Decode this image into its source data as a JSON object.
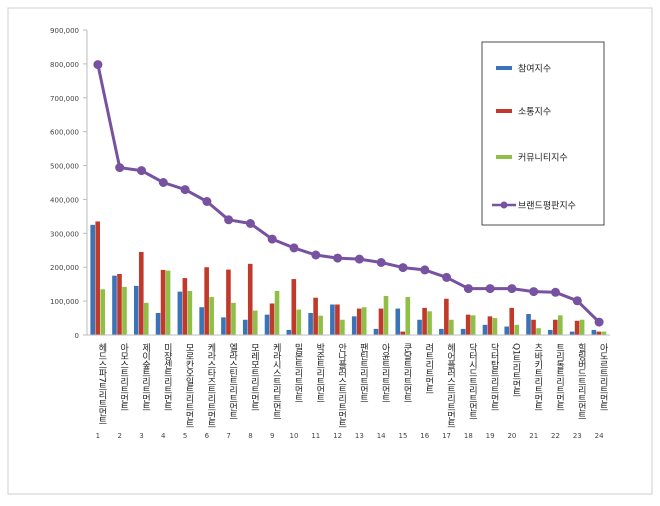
{
  "chart_data": {
    "type": "bar",
    "ylim": [
      0,
      900000
    ],
    "yticks": [
      "0",
      "100,000",
      "200,000",
      "300,000",
      "400,000",
      "500,000",
      "600,000",
      "700,000",
      "800,000",
      "900,000"
    ],
    "ytick_values": [
      0,
      100000,
      200000,
      300000,
      400000,
      500000,
      600000,
      700000,
      800000,
      900000
    ],
    "grid": false,
    "legend_position": "top-right",
    "index_labels": [
      "1",
      "2",
      "3",
      "4",
      "5",
      "6",
      "7",
      "8",
      "9",
      "10",
      "11",
      "12",
      "13",
      "14",
      "15",
      "16",
      "17",
      "18",
      "19",
      "20",
      "21",
      "22",
      "23",
      "24"
    ],
    "categories": [
      "헤드스파7트리트먼트",
      "아모스트리트먼트",
      "제이숲트리트먼트",
      "미쟝센트리트먼트",
      "모로칸오일트리트먼트",
      "케라스타즈트리트먼트",
      "엘라스틴트리트먼트",
      "모레모트리트먼트",
      "케라시스트리트먼트",
      "밀본트리트먼트",
      "박준트리트먼트",
      "안나플러스트리트먼트",
      "팬틴트리트먼트",
      "아윤트리트먼트",
      "쿤달트리트먼트",
      "려트리트먼트",
      "헤어플러스트리트먼트",
      "닥터시드트리트먼트",
      "닥터탑트리트먼트",
      "Q1트리트먼트",
      "츠바키트리트먼트",
      "트리톨트리트먼트",
      "힐링버드트리트먼트",
      "아도르트리트먼트"
    ],
    "series": [
      {
        "name": "참여지수",
        "kind": "bar",
        "color": "#3a73b8",
        "values": [
          325000,
          175000,
          145000,
          65000,
          128000,
          82000,
          52000,
          45000,
          60000,
          15000,
          65000,
          90000,
          55000,
          18000,
          78000,
          45000,
          18000,
          18000,
          30000,
          25000,
          62000,
          15000,
          10000,
          15000
        ]
      },
      {
        "name": "소통지수",
        "kind": "bar",
        "color": "#c0392b",
        "values": [
          335000,
          180000,
          245000,
          192000,
          168000,
          200000,
          193000,
          210000,
          93000,
          165000,
          110000,
          90000,
          78000,
          78000,
          10000,
          80000,
          107000,
          60000,
          55000,
          80000,
          45000,
          45000,
          42000,
          10000
        ]
      },
      {
        "name": "커뮤니티지수",
        "kind": "bar",
        "color": "#8fbf45",
        "values": [
          135000,
          142000,
          95000,
          190000,
          130000,
          112000,
          95000,
          72000,
          130000,
          75000,
          57000,
          45000,
          82000,
          115000,
          112000,
          70000,
          45000,
          58000,
          50000,
          30000,
          20000,
          58000,
          45000,
          10000
        ]
      },
      {
        "name": "브랜드평판지수",
        "kind": "line",
        "color": "#7652a0",
        "values": [
          798000,
          494000,
          485000,
          450000,
          429000,
          394000,
          340000,
          329000,
          283000,
          257000,
          236000,
          227000,
          224000,
          214000,
          199000,
          192000,
          170000,
          137000,
          137000,
          137000,
          128000,
          126000,
          101000,
          38000
        ]
      }
    ]
  }
}
